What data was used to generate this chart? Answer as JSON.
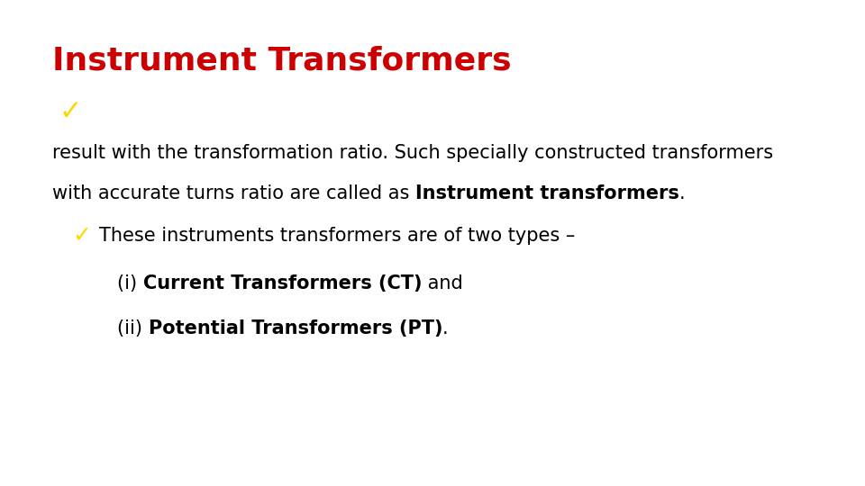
{
  "title": "Instrument Transformers",
  "title_color": "#cc0000",
  "title_fontsize": 26,
  "background_color": "#ffffff",
  "checkmark_color": "#FFD700",
  "text_color": "#000000",
  "text_fontsize": 15,
  "line1": "result with the transformation ratio. Such specially constructed transformers",
  "line2_plain": "with accurate turns ratio are called as ",
  "line2_bold": "Instrument transformers",
  "line2_end": ".",
  "line3": "These instruments transformers are of two types –",
  "line4_plain": "(i) ",
  "line4_bold": "Current Transformers (CT)",
  "line4_end": " and",
  "line5_plain": "(ii) ",
  "line5_bold": "Potential Transformers (PT)",
  "line5_end": "."
}
